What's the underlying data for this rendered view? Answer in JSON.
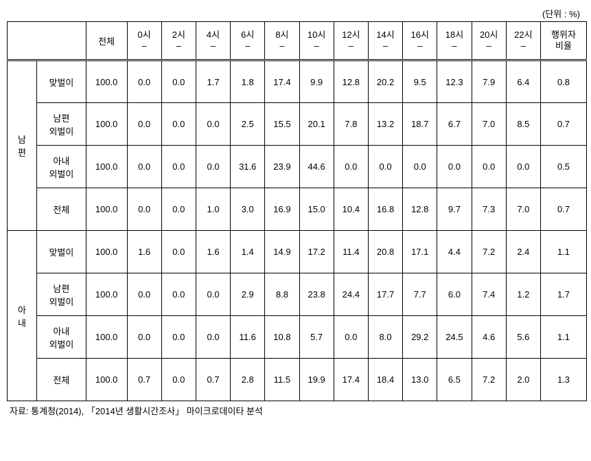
{
  "unit_label": "(단위 : %)",
  "header": {
    "blank": "",
    "total": "전체",
    "hours": [
      "0시",
      "2시",
      "4시",
      "6시",
      "8시",
      "10시",
      "12시",
      "14시",
      "16시",
      "18시",
      "20시",
      "22시"
    ],
    "hour_sub": "–",
    "ratio_line1": "행위자",
    "ratio_line2": "비율"
  },
  "group_labels": {
    "husband_l1": "남",
    "husband_l2": "편",
    "wife_l1": "아",
    "wife_l2": "내"
  },
  "row_labels": {
    "dual": "맞벌이",
    "hus_only_l1": "남편",
    "hus_only_l2": "외벌이",
    "wife_only_l1": "아내",
    "wife_only_l2": "외벌이",
    "all": "전체"
  },
  "data": {
    "husband": {
      "dual": [
        "100.0",
        "0.0",
        "0.0",
        "1.7",
        "1.8",
        "17.4",
        "9.9",
        "12.8",
        "20.2",
        "9.5",
        "12.3",
        "7.9",
        "6.4",
        "0.8"
      ],
      "hus_only": [
        "100.0",
        "0.0",
        "0.0",
        "0.0",
        "2.5",
        "15.5",
        "20.1",
        "7.8",
        "13.2",
        "18.7",
        "6.7",
        "7.0",
        "8.5",
        "0.7"
      ],
      "wife_only": [
        "100.0",
        "0.0",
        "0.0",
        "0.0",
        "31.6",
        "23.9",
        "44.6",
        "0.0",
        "0.0",
        "0.0",
        "0.0",
        "0.0",
        "0.0",
        "0.5"
      ],
      "all": [
        "100.0",
        "0.0",
        "0.0",
        "1.0",
        "3.0",
        "16.9",
        "15.0",
        "10.4",
        "16.8",
        "12.8",
        "9.7",
        "7.3",
        "7.0",
        "0.7"
      ]
    },
    "wife": {
      "dual": [
        "100.0",
        "1.6",
        "0.0",
        "1.6",
        "1.4",
        "14.9",
        "17.2",
        "11.4",
        "20.8",
        "17.1",
        "4.4",
        "7.2",
        "2.4",
        "1.1"
      ],
      "hus_only": [
        "100.0",
        "0.0",
        "0.0",
        "0.0",
        "2.9",
        "8.8",
        "23.8",
        "24.4",
        "17.7",
        "7.7",
        "6.0",
        "7.4",
        "1.2",
        "1.7"
      ],
      "wife_only": [
        "100.0",
        "0.0",
        "0.0",
        "0.0",
        "11.6",
        "10.8",
        "5.7",
        "0.0",
        "8.0",
        "29.2",
        "24.5",
        "4.6",
        "5.6",
        "1.1"
      ],
      "all": [
        "100.0",
        "0.7",
        "0.0",
        "0.7",
        "2.8",
        "11.5",
        "19.9",
        "17.4",
        "18.4",
        "13.0",
        "6.5",
        "7.2",
        "2.0",
        "1.3"
      ]
    }
  },
  "source": "자료: 통계청(2014), 「2014년 생활시간조사」 마이크로데이타 분석"
}
